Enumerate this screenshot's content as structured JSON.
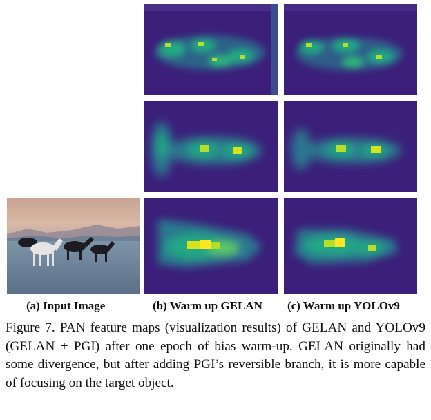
{
  "figure": {
    "panels": {
      "input_image": "photo-horses-on-meadow",
      "gelan_maps": [
        "feature-map-top",
        "feature-map-middle",
        "feature-map-bottom"
      ],
      "yolov9_maps": [
        "feature-map-top",
        "feature-map-middle",
        "feature-map-bottom"
      ]
    },
    "sublabels": {
      "a": "(a) Input Image",
      "b": "(b) Warm up GELAN",
      "c": "(c) Warm up YOLOv9"
    },
    "caption": "Figure 7.  PAN feature maps (visualization results) of GELAN and YOLOv9 (GELAN + PGI) after one epoch of bias warm-up. GELAN originally had some divergence, but after adding PGI’s reversible branch, it is more capable of focusing on the target object."
  },
  "colors": {
    "map_background": "#3b1f7a",
    "map_mid": "#2a788e",
    "map_high": "#22a884",
    "map_peak": "#fde725"
  }
}
